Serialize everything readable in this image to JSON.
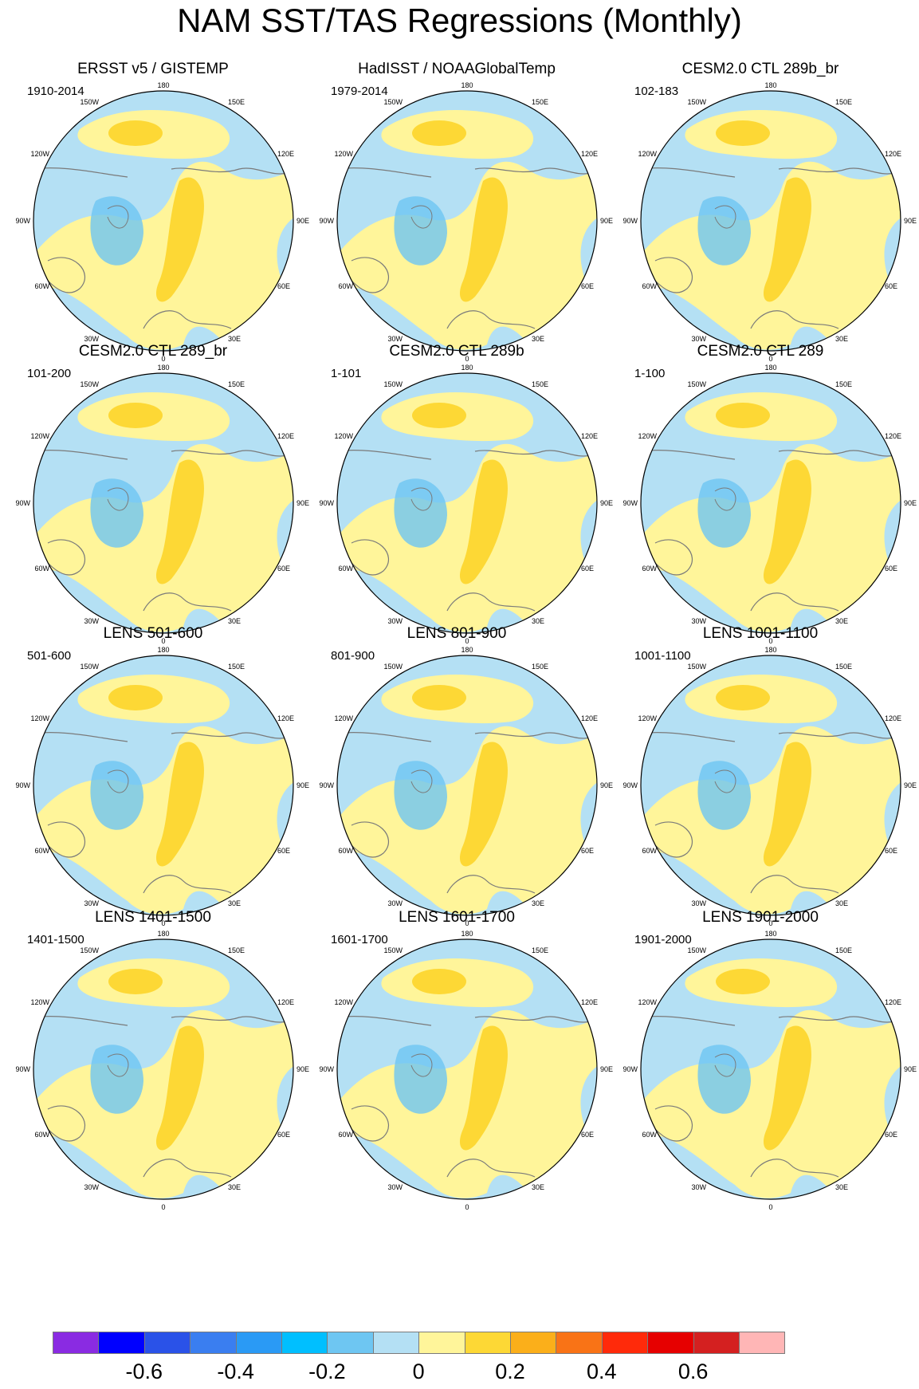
{
  "title": "NAM SST/TAS Regressions (Monthly)",
  "map_labels": {
    "top": "180",
    "bottom": "0",
    "left": "90W",
    "right": "90E",
    "upper_left_1": "150W",
    "upper_left_2": "120W",
    "upper_right_1": "150E",
    "upper_right_2": "120E",
    "lower_left_1": "60W",
    "lower_left_2": "30W",
    "lower_right_1": "60E",
    "lower_right_2": "30E"
  },
  "panels": [
    {
      "title": "ERSST v5 / GISTEMP",
      "years": "1910-2014"
    },
    {
      "title": "HadISST / NOAAGlobalTemp",
      "years": "1979-2014"
    },
    {
      "title": "CESM2.0 CTL 289b_br",
      "years": "102-183"
    },
    {
      "title": "CESM2.0 CTL 289_br",
      "years": "101-200"
    },
    {
      "title": "CESM2.0 CTL 289b",
      "years": "1-101"
    },
    {
      "title": "CESM2.0 CTL 289",
      "years": "1-100"
    },
    {
      "title": "LENS 501-600",
      "years": "501-600"
    },
    {
      "title": "LENS 801-900",
      "years": "801-900"
    },
    {
      "title": "LENS 1001-1100",
      "years": "1001-1100"
    },
    {
      "title": "LENS 1401-1500",
      "years": "1401-1500"
    },
    {
      "title": "LENS 1601-1700",
      "years": "1601-1700"
    },
    {
      "title": "LENS 1901-2000",
      "years": "1901-2000"
    }
  ],
  "colorbar": {
    "colors": [
      "#8a2be2",
      "#0000ff",
      "#2a52e8",
      "#3a7ef0",
      "#2a9af5",
      "#00bfff",
      "#6ec6f2",
      "#b4e0f4",
      "#fff59a",
      "#fdd835",
      "#fbaf1a",
      "#f97316",
      "#ff2a0a",
      "#e60000",
      "#d42020",
      "#ffb6b6"
    ],
    "labels": [
      "-0.6",
      "-0.4",
      "-0.2",
      "0",
      "0.2",
      "0.4",
      "0.6"
    ]
  }
}
